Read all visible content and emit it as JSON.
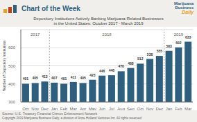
{
  "chart_data": {
    "type": "bar",
    "header": "Chart of the Week",
    "logo": [
      "Marijuana",
      "Business",
      "Daily"
    ],
    "title": "Depository Institutions Actively Banking Marijuana-Related Businesses",
    "subtitle": "in the United States: October 2017 - March 2019",
    "ylabel": "Number of Depository Institutions",
    "annotations": [
      "2017",
      "2018",
      "2019"
    ],
    "categories": [
      "Oct",
      "Nov",
      "Dec",
      "Jan",
      "Feb",
      "Mar",
      "Apr",
      "May",
      "Jun",
      "Jul",
      "Aug",
      "Sep",
      "Oct",
      "Nov",
      "Dec",
      "Jan",
      "Feb",
      "Mar"
    ],
    "values": [
      401,
      405,
      413,
      407,
      401,
      411,
      405,
      423,
      446,
      448,
      470,
      488,
      512,
      538,
      555,
      583,
      602,
      633
    ],
    "color": "#2e5f7e",
    "ylim": [
      300,
      700
    ],
    "yticks": [
      300,
      400,
      500,
      600
    ],
    "grid": true,
    "data_labels": true,
    "source": "Source: U.S. Treasury Financial Crimes Enforcement Network",
    "copyright": "Copyright 2019 Marijuana Business Daily, a division of Anne Holland Ventures Inc. All rights reserved."
  }
}
